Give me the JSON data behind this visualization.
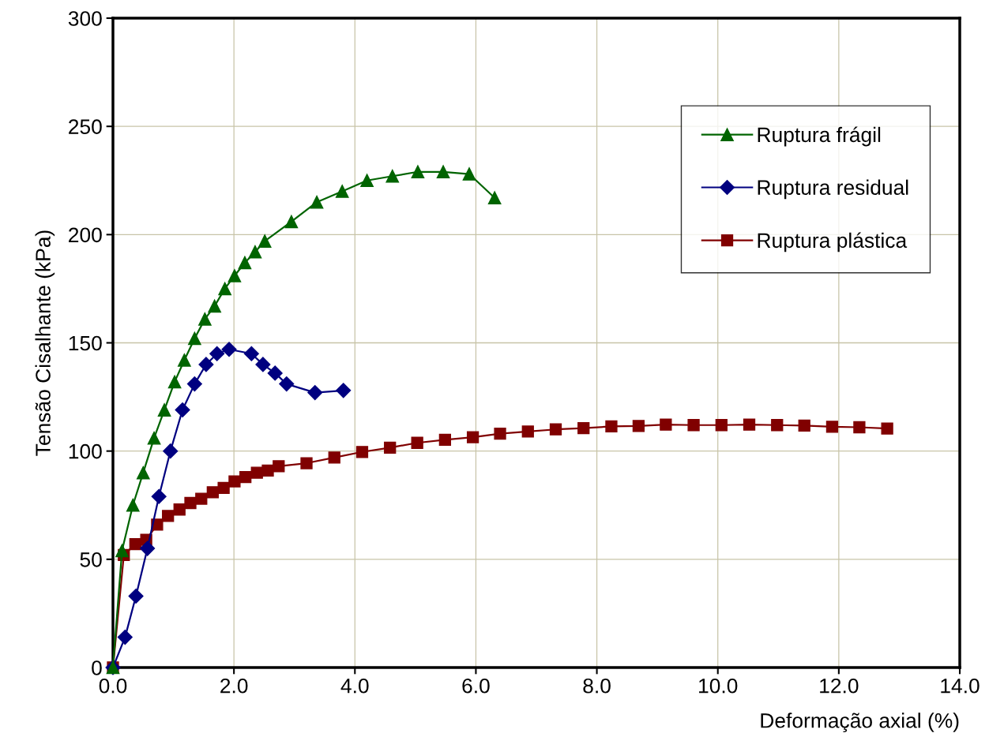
{
  "chart_data": {
    "type": "line",
    "xlabel": "Deformação axial (%)",
    "ylabel": "Tensão Cisalhante (kPa)",
    "xlim": [
      0,
      14
    ],
    "ylim": [
      0,
      300
    ],
    "xticks": [
      {
        "value": 0,
        "label": "0.0"
      },
      {
        "value": 2,
        "label": "2.0"
      },
      {
        "value": 4,
        "label": "4.0"
      },
      {
        "value": 6,
        "label": "6.0"
      },
      {
        "value": 8,
        "label": "8.0"
      },
      {
        "value": 10,
        "label": "10.0"
      },
      {
        "value": 12,
        "label": "12.0"
      },
      {
        "value": 14,
        "label": "14.0"
      }
    ],
    "yticks": [
      0,
      50,
      100,
      150,
      200,
      250,
      300
    ],
    "grid": true,
    "legend": "top right",
    "series": [
      {
        "name": "Ruptura frágil",
        "color": "#006400",
        "marker": "triangle",
        "x": [
          0,
          0.15,
          0.33,
          0.5,
          0.68,
          0.85,
          1.02,
          1.18,
          1.35,
          1.52,
          1.68,
          1.85,
          2.01,
          2.18,
          2.35,
          2.51,
          2.95,
          3.37,
          3.79,
          4.2,
          4.62,
          5.04,
          5.46,
          5.89,
          6.31
        ],
        "values": [
          0,
          54,
          75,
          90,
          106,
          119,
          132,
          142,
          152,
          161,
          167,
          175,
          181,
          187,
          192,
          197,
          206,
          215,
          220,
          225,
          227,
          229,
          229,
          228,
          217
        ]
      },
      {
        "name": "Ruptura residual",
        "color": "#000080",
        "marker": "diamond",
        "x": [
          0,
          0.2,
          0.38,
          0.57,
          0.76,
          0.95,
          1.15,
          1.35,
          1.54,
          1.72,
          1.92,
          2.29,
          2.48,
          2.68,
          2.87,
          3.34,
          3.81
        ],
        "values": [
          0,
          14,
          33,
          55,
          79,
          100,
          119,
          131,
          140,
          145,
          147,
          145,
          140,
          136,
          131,
          127,
          128
        ]
      },
      {
        "name": "Ruptura plástica",
        "color": "#800000",
        "marker": "square",
        "x": [
          0,
          0.18,
          0.37,
          0.55,
          0.73,
          0.91,
          1.1,
          1.28,
          1.46,
          1.65,
          1.83,
          2.01,
          2.19,
          2.38,
          2.56,
          2.74,
          3.2,
          3.66,
          4.12,
          4.58,
          5.03,
          5.49,
          5.95,
          6.4,
          6.86,
          7.32,
          7.78,
          8.24,
          8.69,
          9.14,
          9.6,
          10.06,
          10.52,
          10.98,
          11.43,
          11.89,
          12.34,
          12.8
        ],
        "values": [
          0,
          52,
          57,
          59,
          66,
          70,
          73,
          76,
          78,
          81,
          83,
          86,
          88,
          90,
          91,
          93,
          94.4,
          97,
          99.6,
          101.6,
          103.8,
          105.2,
          106.4,
          108,
          109,
          110,
          110.6,
          111.4,
          111.6,
          112.2,
          112,
          112,
          112.2,
          112,
          111.8,
          111.2,
          111,
          110.4
        ]
      }
    ]
  }
}
